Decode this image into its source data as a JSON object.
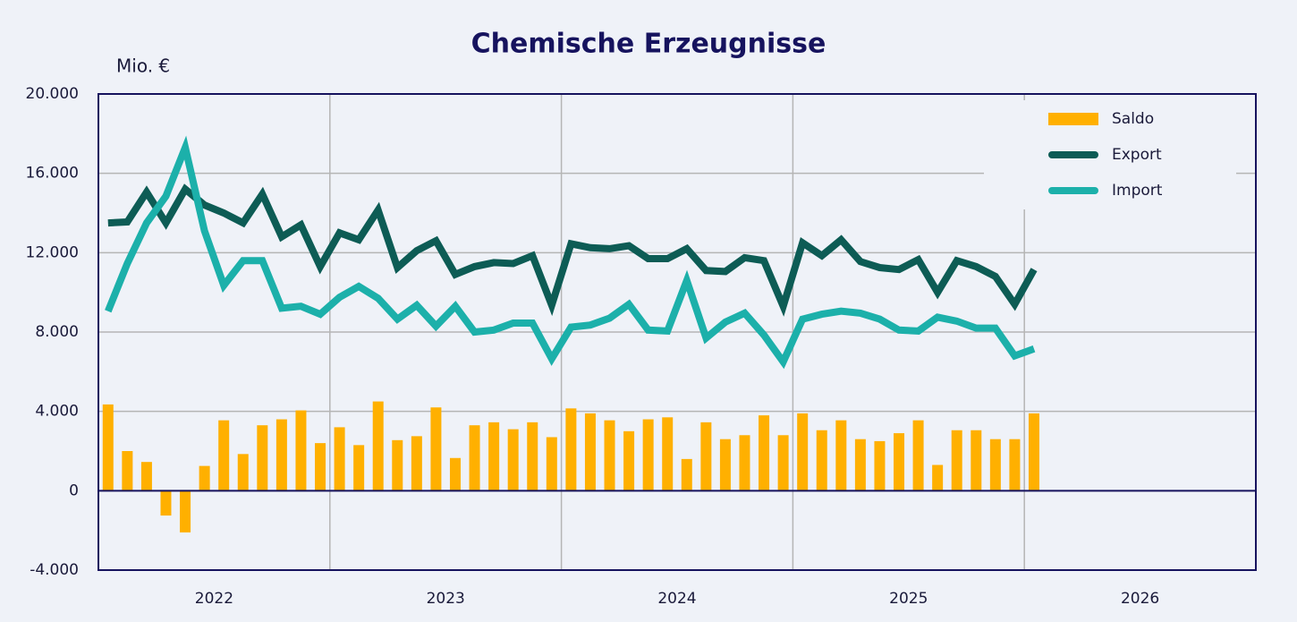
{
  "chart_data": {
    "type": "bar_line",
    "title": "Chemische Erzeugnisse",
    "y_label": "Mio. €",
    "categories": [
      null,
      null,
      null,
      null,
      null,
      null,
      null,
      null,
      null,
      null,
      null,
      null,
      null,
      null,
      null,
      null,
      null,
      null,
      null,
      null,
      null,
      null,
      null,
      null,
      null,
      null,
      null,
      null,
      null,
      null,
      null,
      null,
      null,
      null,
      null,
      null,
      null,
      null,
      null,
      null,
      null,
      null,
      null,
      null,
      null,
      null,
      null,
      null,
      null,
      null,
      null,
      null,
      null,
      null,
      null,
      null,
      null,
      null,
      null,
      null
    ],
    "x_group_labels": [
      "2022",
      "2023",
      "2024",
      "2025",
      "2026"
    ],
    "series": [
      {
        "name": "Saldo",
        "kind": "bar",
        "color": "#ffb000",
        "values": [
          4350,
          2000,
          1450,
          -1250,
          -2100,
          1250,
          3550,
          1850,
          3300,
          3600,
          4050,
          2400,
          3200,
          2300,
          4500,
          2550,
          2750,
          4200,
          1650,
          3300,
          3450,
          3100,
          3450,
          2700,
          4150,
          3900,
          3550,
          3000,
          3600,
          3700,
          1600,
          3450,
          2600,
          2800,
          3800,
          2800,
          3900,
          3050,
          3550,
          2600,
          2500,
          2900,
          3550,
          1300,
          3050,
          3050,
          2600,
          2600,
          3900,
          null,
          null,
          null,
          null,
          null,
          null,
          null,
          null,
          null,
          null,
          null
        ]
      },
      {
        "name": "Export",
        "kind": "line",
        "color": "#0d5c55",
        "values": [
          13500,
          13550,
          15050,
          13500,
          15200,
          14400,
          14000,
          13500,
          14950,
          12800,
          13400,
          11300,
          13000,
          12650,
          14150,
          11250,
          12100,
          12600,
          10900,
          11300,
          11500,
          11450,
          11850,
          9350,
          12450,
          12250,
          12200,
          12350,
          11700,
          11700,
          12200,
          11100,
          11050,
          11750,
          11600,
          9300,
          12500,
          11850,
          12650,
          11550,
          11250,
          11150,
          11650,
          10000,
          11600,
          11300,
          10800,
          9400,
          11150,
          null,
          null,
          null,
          null,
          null,
          null,
          null,
          null,
          null,
          null,
          null
        ]
      },
      {
        "name": "Import",
        "kind": "line",
        "color": "#1cb0aa",
        "values": [
          9050,
          11450,
          13500,
          14850,
          17300,
          13100,
          10350,
          11600,
          11600,
          9200,
          9300,
          8900,
          9750,
          10300,
          9700,
          8650,
          9350,
          8300,
          9300,
          8000,
          8100,
          8450,
          8450,
          6650,
          8250,
          8350,
          8700,
          9400,
          8100,
          8050,
          10600,
          7700,
          8500,
          8950,
          7850,
          6500,
          8650,
          8900,
          9050,
          8950,
          8650,
          8100,
          8050,
          8750,
          8550,
          8200,
          8200,
          6800,
          7150,
          null,
          null,
          null,
          null,
          null,
          null,
          null,
          null,
          null,
          null,
          null
        ]
      }
    ],
    "ylim": [
      -4000,
      20000
    ],
    "yticks": [
      {
        "value": -4000,
        "label": "-4.000"
      },
      0,
      {
        "value": 4000,
        "label": "4.000"
      },
      {
        "value": 8000,
        "label": "8.000"
      },
      {
        "value": 12000,
        "label": "12.000"
      },
      {
        "value": 16000,
        "label": "16.000"
      },
      {
        "value": 20000,
        "label": "20.000"
      }
    ],
    "grid": true,
    "legend": "upper right"
  }
}
